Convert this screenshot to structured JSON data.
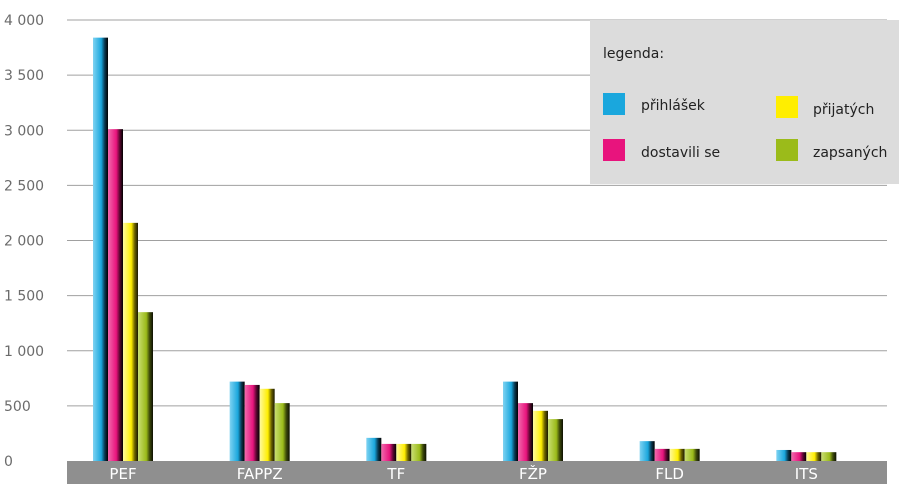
{
  "chart_data": {
    "type": "bar",
    "categories": [
      "PEF",
      "FAPPZ",
      "TF",
      "FŽP",
      "FLD",
      "ITS"
    ],
    "ylim": [
      0,
      4000
    ],
    "y_ticks": [
      0,
      500,
      1000,
      1500,
      2000,
      2500,
      3000,
      3500,
      4000
    ],
    "y_tick_labels": [
      "0",
      "500",
      "1 000",
      "1 500",
      "2 000",
      "2 500",
      "3 000",
      "3 500",
      "4 000"
    ],
    "grid": true,
    "legend": {
      "title": "legenda:",
      "placement": "top-right"
    },
    "series": [
      {
        "name": "přihlášek",
        "color": "#1aa7dd",
        "values": [
          3840,
          720,
          210,
          720,
          180,
          100
        ]
      },
      {
        "name": "dostavili se",
        "color": "#e8147d",
        "values": [
          3010,
          690,
          155,
          525,
          110,
          80
        ]
      },
      {
        "name": "přijatých",
        "color": "#ffee00",
        "values": [
          2160,
          655,
          155,
          455,
          110,
          80
        ]
      },
      {
        "name": "zapsaných",
        "color": "#9bbb1a",
        "values": [
          1350,
          525,
          155,
          380,
          110,
          80
        ]
      }
    ]
  }
}
